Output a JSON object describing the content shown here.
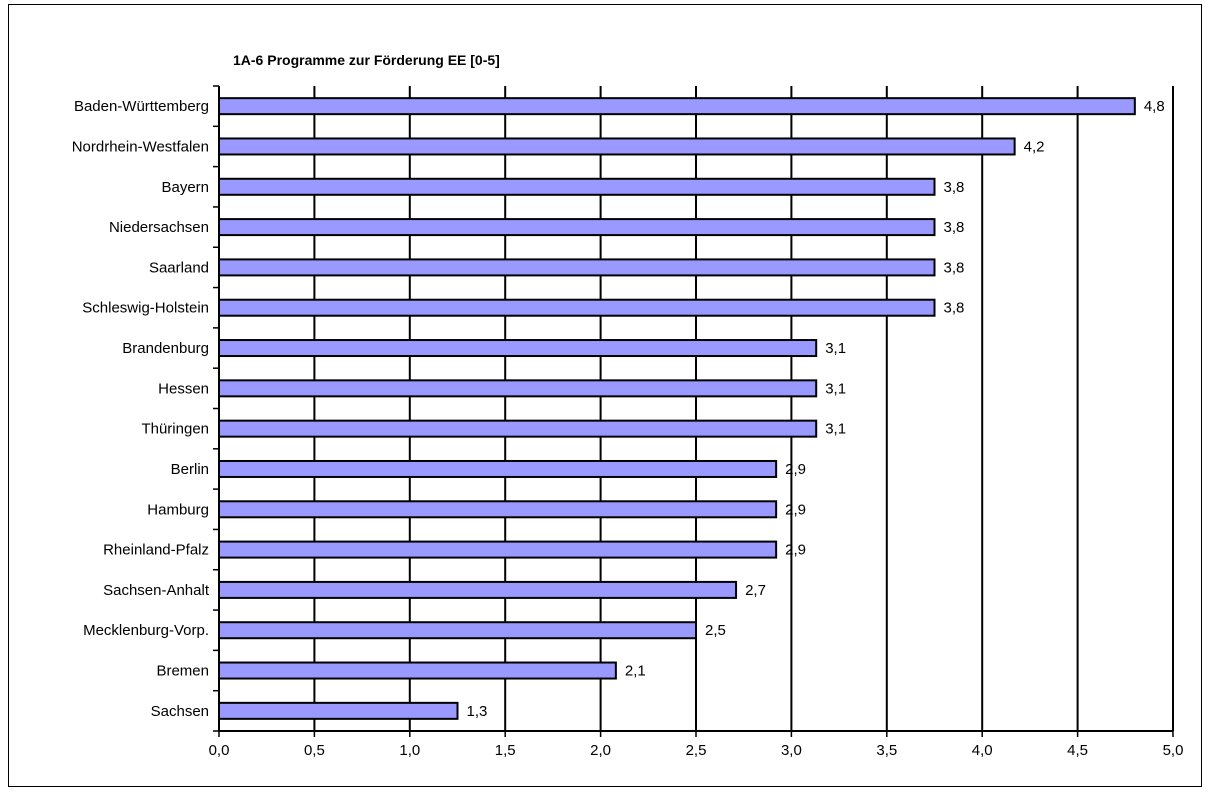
{
  "chart_data": {
    "type": "bar",
    "orientation": "horizontal",
    "title": "1A-6 Programme zur Förderung EE [0-5]",
    "xlabel": "",
    "ylabel": "",
    "categories": [
      "Baden-Württemberg",
      "Nordrhein-Westfalen",
      "Bayern",
      "Niedersachsen",
      "Saarland",
      "Schleswig-Holstein",
      "Brandenburg",
      "Hessen",
      "Thüringen",
      "Berlin",
      "Hamburg",
      "Rheinland-Pfalz",
      "Sachsen-Anhalt",
      "Mecklenburg-Vorp.",
      "Bremen",
      "Sachsen"
    ],
    "values": [
      4.8,
      4.17,
      3.75,
      3.75,
      3.75,
      3.75,
      3.13,
      3.13,
      3.13,
      2.92,
      2.92,
      2.92,
      2.71,
      2.5,
      2.08,
      1.25
    ],
    "value_labels": [
      "4,8",
      "4,2",
      "3,8",
      "3,8",
      "3,8",
      "3,8",
      "3,1",
      "3,1",
      "3,1",
      "2,9",
      "2,9",
      "2,9",
      "2,7",
      "2,5",
      "2,1",
      "1,3"
    ],
    "xlim": [
      0,
      5
    ],
    "xticks": [
      "0,0",
      "0,5",
      "1,0",
      "1,5",
      "2,0",
      "2,5",
      "3,0",
      "3,5",
      "4,0",
      "4,5",
      "5,0"
    ],
    "grid": true,
    "legend": "none",
    "colors": {
      "bar_fill": "#9999FF",
      "bar_stroke": "#000000",
      "gridline": "#000000"
    }
  }
}
